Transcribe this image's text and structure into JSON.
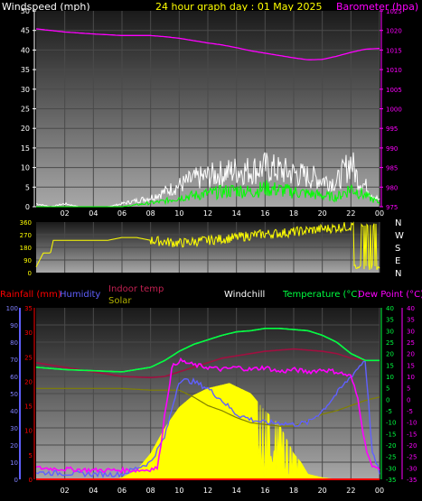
{
  "header": {
    "windspeed_label": "Windspeed (mph)",
    "graph_title": "24 hour graph day : 01 May 2025",
    "barometer_label": "Barometer (hpa)"
  },
  "colors": {
    "background": "#000000",
    "plot_bg_top": "#202020",
    "plot_bg_bottom": "#9a9a9a",
    "grid": "#4a4a4a",
    "wind_gust": "#ffffff",
    "wind_avg": "#00ff00",
    "barometer": "#ff00ff",
    "wind_dir": "#ffff00",
    "rainfall": "#ff0000",
    "humidity": "#6060ff",
    "indoor_temp": "#a01040",
    "solar": "#ffff00",
    "windchill": "#ffffff",
    "temperature": "#00ff40",
    "dew_point": "#ff00ff",
    "solar_baseline": "#808000"
  },
  "x_axis": {
    "ticks": [
      "02",
      "04",
      "06",
      "08",
      "10",
      "12",
      "14",
      "16",
      "18",
      "20",
      "22",
      "00"
    ]
  },
  "chart_data": [
    {
      "id": "wind_baro",
      "type": "line",
      "title": "24 hour graph day : 01 May 2025",
      "ylabel_left": "Windspeed (mph)",
      "ylabel_right": "Barometer (hpa)",
      "x_hours": [
        0,
        24
      ],
      "ylim_left": [
        0,
        50
      ],
      "ylim_right": [
        975,
        1025
      ],
      "left_ticks": [
        "0",
        "5",
        "10",
        "15",
        "20",
        "25",
        "30",
        "35",
        "40",
        "45",
        "50"
      ],
      "right_ticks": [
        "975",
        "980",
        "985",
        "990",
        "995",
        "1000",
        "1005",
        "1010",
        "1015",
        "1020",
        "1025"
      ],
      "series": [
        {
          "name": "Barometer (hpa)",
          "axis": "right",
          "x": [
            0,
            2,
            4,
            6,
            8,
            9,
            10,
            11,
            12,
            13,
            14,
            15,
            16,
            17,
            18,
            19,
            20,
            21,
            22,
            23,
            24
          ],
          "values": [
            1020.4,
            1019.6,
            1019.1,
            1018.7,
            1018.7,
            1018.4,
            1018.0,
            1017.4,
            1016.8,
            1016.3,
            1015.6,
            1014.8,
            1014.2,
            1013.6,
            1013.0,
            1012.5,
            1012.6,
            1013.4,
            1014.4,
            1015.2,
            1015.4
          ]
        },
        {
          "name": "Gust",
          "axis": "left",
          "x": [
            0,
            1,
            2,
            3,
            4,
            5,
            6,
            7,
            8,
            9,
            10,
            11,
            12,
            13,
            14,
            15,
            16,
            17,
            18,
            19,
            20,
            21,
            22,
            22.5,
            23,
            23.5,
            24
          ],
          "values": [
            1,
            0,
            1,
            0,
            0,
            0,
            1,
            2,
            3,
            5,
            7,
            9,
            10,
            11,
            12,
            12,
            13,
            12,
            11,
            10,
            9,
            8,
            15,
            9,
            7,
            4,
            2
          ]
        },
        {
          "name": "Average",
          "axis": "left",
          "x": [
            0,
            2,
            4,
            6,
            7,
            8,
            9,
            10,
            11,
            12,
            13,
            14,
            15,
            16,
            17,
            18,
            19,
            20,
            21,
            22,
            23,
            24
          ],
          "values": [
            0,
            0,
            0,
            0,
            0.5,
            1,
            1.5,
            2.5,
            3,
            3.5,
            4,
            4.5,
            4,
            5,
            4.5,
            4,
            3.5,
            3,
            2.5,
            5,
            3,
            1
          ]
        }
      ]
    },
    {
      "id": "wind_direction",
      "type": "scatter",
      "y_ticks": [
        "0",
        "90",
        "180",
        "270",
        "360"
      ],
      "ylim": [
        0,
        360
      ],
      "compass": [
        "N",
        "W",
        "S",
        "E",
        "N"
      ],
      "series": [
        {
          "name": "Wind direction",
          "x": [
            0,
            0.5,
            1,
            1.2,
            2,
            3,
            4,
            5,
            5.5,
            6,
            7,
            8,
            9,
            10,
            11,
            12,
            13,
            14,
            15,
            16,
            17,
            18,
            19,
            20,
            21,
            22,
            22.2,
            22.5,
            23,
            23.5,
            24
          ],
          "values": [
            40,
            140,
            140,
            230,
            230,
            230,
            230,
            230,
            240,
            250,
            250,
            230,
            220,
            210,
            220,
            230,
            240,
            250,
            265,
            275,
            280,
            290,
            300,
            310,
            320,
            330,
            30,
            340,
            20,
            330,
            350
          ]
        }
      ]
    },
    {
      "id": "temp_rain",
      "type": "line",
      "legend": [
        "Rainfall (mm)",
        "Humidity",
        "Indoor temp",
        "Solar",
        "Windchill",
        "Temperature (°C)",
        "Dew Point (°C)"
      ],
      "ylim_humidity": [
        0,
        100
      ],
      "ylim_rain": [
        0,
        35
      ],
      "ylim_temp": [
        -35,
        40
      ],
      "humidity_ticks": [
        "0",
        "10",
        "20",
        "30",
        "40",
        "50",
        "60",
        "70",
        "80",
        "90",
        "100"
      ],
      "rain_ticks": [
        "0",
        "5",
        "10",
        "15",
        "20",
        "25",
        "30",
        "35"
      ],
      "temp_ticks": [
        "-35",
        "-30",
        "-25",
        "-20",
        "-15",
        "-10",
        "-5",
        "0",
        "5",
        "10",
        "15",
        "20",
        "25",
        "30",
        "35",
        "40"
      ],
      "temp_ticks_right": [
        "-35",
        "-30",
        "-25",
        "-20",
        "-15",
        "-10",
        "-5",
        "0",
        "5",
        "10",
        "15",
        "20",
        "25",
        "30",
        "35",
        "40"
      ],
      "series": [
        {
          "name": "Temperature (°C)",
          "axis": "temp",
          "x": [
            0,
            2,
            4,
            6,
            8,
            9,
            10,
            11,
            12,
            13,
            14,
            15,
            16,
            17,
            18,
            19,
            20,
            21,
            22,
            23,
            24
          ],
          "values": [
            14,
            13,
            12.5,
            12,
            14,
            17,
            21,
            24,
            26,
            28,
            29.5,
            30,
            31,
            31,
            30.5,
            30,
            28,
            25,
            20,
            17,
            17
          ]
        },
        {
          "name": "Windchill",
          "axis": "temp",
          "x": [
            0,
            2,
            4,
            6,
            8,
            9,
            10,
            11,
            12,
            13,
            14,
            15,
            16,
            17,
            18,
            19,
            20,
            21,
            22,
            23,
            24
          ],
          "values": [
            14,
            13,
            12.5,
            12,
            14,
            17,
            21,
            24,
            26,
            28,
            29.5,
            30,
            31,
            31,
            30.5,
            30,
            28,
            25,
            20,
            17,
            17
          ]
        },
        {
          "name": "Indoor temp",
          "axis": "temp",
          "x": [
            0,
            2,
            4,
            6,
            8,
            9,
            10,
            11,
            12,
            13,
            14,
            15,
            16,
            17,
            18,
            19,
            20,
            21,
            22,
            23,
            24
          ],
          "values": [
            16,
            14,
            12,
            10,
            9.5,
            10,
            12,
            14,
            16,
            18,
            19,
            20,
            21,
            21.5,
            22,
            21.5,
            21,
            20,
            18,
            17,
            17
          ]
        },
        {
          "name": "Dew Point (°C)",
          "axis": "temp",
          "x": [
            0,
            2,
            4,
            6,
            7.5,
            8.5,
            9,
            9.5,
            10,
            11,
            12,
            13,
            14,
            15,
            16,
            17,
            18,
            19,
            20,
            21,
            22,
            22.5,
            23,
            23.5,
            24
          ],
          "values": [
            -30,
            -30.5,
            -31,
            -31,
            -31,
            -30,
            -6,
            14,
            17,
            15,
            14,
            13,
            14,
            13,
            14,
            12,
            13,
            12,
            13,
            12,
            10,
            0,
            -20,
            -30,
            -30
          ]
        },
        {
          "name": "Humidity",
          "axis": "humidity",
          "x": [
            0,
            2,
            4,
            6,
            8,
            9,
            10,
            11,
            12,
            13,
            14,
            15,
            16,
            17,
            18,
            19,
            20,
            21,
            22,
            23,
            23.5,
            24
          ],
          "values": [
            4,
            3.5,
            3,
            3,
            10,
            25,
            58,
            57,
            53,
            46,
            38,
            35,
            33,
            33,
            32,
            33,
            40,
            50,
            60,
            70,
            15,
            4
          ]
        },
        {
          "name": "Solar",
          "axis": "humidity",
          "x": [
            0,
            6,
            8,
            9,
            10,
            11,
            12,
            13,
            14,
            15,
            16,
            17,
            18,
            19,
            20,
            21,
            22,
            23,
            24
          ],
          "values": [
            53,
            53,
            52,
            52,
            52,
            48,
            43,
            40,
            36,
            33,
            32,
            31,
            31,
            34,
            38,
            40,
            43,
            46,
            48
          ]
        },
        {
          "name": "Solar radiation",
          "axis": "humidity",
          "x": [
            5.5,
            6,
            7,
            8,
            9,
            10,
            11,
            12,
            13,
            13.5,
            14,
            15,
            16,
            17,
            18,
            18.5,
            19,
            20,
            21
          ],
          "values": [
            0,
            1,
            5,
            15,
            30,
            42,
            49,
            53,
            55,
            56,
            54,
            50,
            40,
            32,
            15,
            10,
            3,
            1,
            0
          ]
        },
        {
          "name": "Rainfall (mm)",
          "axis": "rain",
          "x": [
            0,
            24
          ],
          "values": [
            0,
            0
          ]
        }
      ]
    }
  ]
}
